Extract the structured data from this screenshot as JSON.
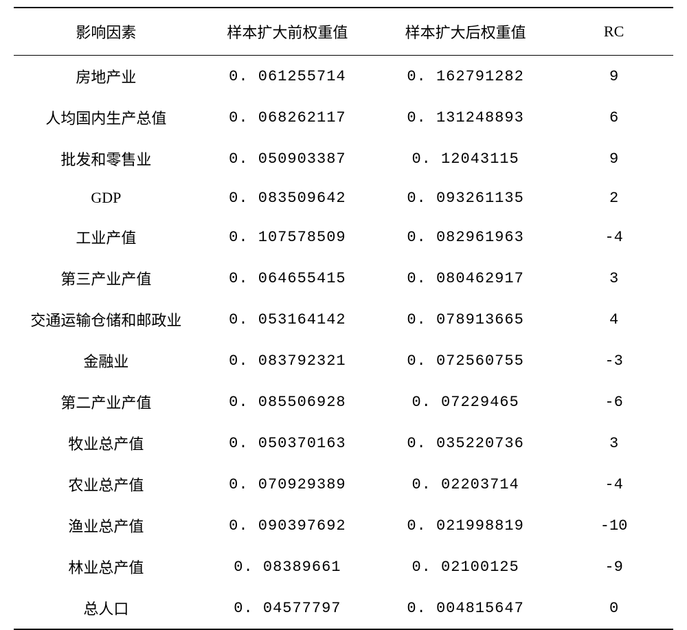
{
  "table": {
    "type": "table",
    "border_color": "#000000",
    "background_color": "#ffffff",
    "font_size": 22,
    "header_font_size": 22,
    "columns": [
      {
        "key": "factor",
        "label": "影响因素",
        "width_pct": 28,
        "align": "center"
      },
      {
        "key": "before",
        "label": "样本扩大前权重值",
        "width_pct": 27,
        "align": "center"
      },
      {
        "key": "after",
        "label": "样本扩大后权重值",
        "width_pct": 27,
        "align": "center"
      },
      {
        "key": "rc",
        "label": "RC",
        "width_pct": 18,
        "align": "center"
      }
    ],
    "rows": [
      {
        "factor": "房地产业",
        "before": "0. 061255714",
        "after": "0. 162791282",
        "rc": "9"
      },
      {
        "factor": "人均国内生产总值",
        "before": "0. 068262117",
        "after": "0. 131248893",
        "rc": "6"
      },
      {
        "factor": "批发和零售业",
        "before": "0. 050903387",
        "after": "0. 12043115",
        "rc": "9"
      },
      {
        "factor": "GDP",
        "before": "0. 083509642",
        "after": "0. 093261135",
        "rc": "2"
      },
      {
        "factor": "工业产值",
        "before": "0. 107578509",
        "after": "0. 082961963",
        "rc": "-4"
      },
      {
        "factor": "第三产业产值",
        "before": "0. 064655415",
        "after": "0. 080462917",
        "rc": "3"
      },
      {
        "factor": "交通运输仓储和邮政业",
        "before": "0. 053164142",
        "after": "0. 078913665",
        "rc": "4"
      },
      {
        "factor": "金融业",
        "before": "0. 083792321",
        "after": "0. 072560755",
        "rc": "-3"
      },
      {
        "factor": "第二产业产值",
        "before": "0. 085506928",
        "after": "0. 07229465",
        "rc": "-6"
      },
      {
        "factor": "牧业总产值",
        "before": "0. 050370163",
        "after": "0. 035220736",
        "rc": "3"
      },
      {
        "factor": "农业总产值",
        "before": "0. 070929389",
        "after": "0. 02203714",
        "rc": "-4"
      },
      {
        "factor": "渔业总产值",
        "before": "0. 090397692",
        "after": "0. 021998819",
        "rc": "-10"
      },
      {
        "factor": "林业总产值",
        "before": "0. 08389661",
        "after": "0. 02100125",
        "rc": "-9"
      },
      {
        "factor": "总人口",
        "before": "0. 04577797",
        "after": "0. 004815647",
        "rc": "0"
      }
    ]
  }
}
